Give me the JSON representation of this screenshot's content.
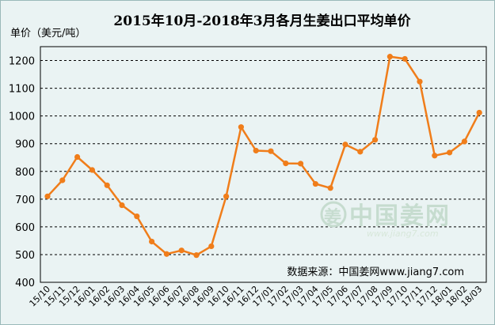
{
  "chart_data": {
    "type": "line",
    "title": "2015年10月-2018年3月各月生姜出口平均单价",
    "ylabel": "单价（美元/吨）",
    "xlabel": "",
    "ylim": [
      400,
      1250
    ],
    "yticks": [
      400,
      500,
      600,
      700,
      800,
      900,
      1000,
      1100,
      1200
    ],
    "grid": "horizontal-dashed",
    "legend": "none",
    "categories": [
      "15/10",
      "15/11",
      "15/12",
      "16/01",
      "16/02",
      "16/03",
      "16/04",
      "16/05",
      "16/06",
      "16/07",
      "16/08",
      "16/09",
      "16/10",
      "16/11",
      "16/12",
      "17/01",
      "17/02",
      "17/03",
      "17/04",
      "17/05",
      "17/06",
      "17/07",
      "17/08",
      "17/09",
      "17/10",
      "17/11",
      "17/12",
      "18/01",
      "18/02",
      "18/03"
    ],
    "series": [
      {
        "color": "#f07d1a",
        "values": [
          710,
          768,
          852,
          805,
          750,
          678,
          638,
          547,
          502,
          515,
          498,
          530,
          710,
          960,
          875,
          873,
          829,
          828,
          755,
          740,
          897,
          871,
          914,
          1214,
          1206,
          1124,
          857,
          868,
          908,
          1012
        ]
      }
    ]
  },
  "source_text": "数据来源：中国姜网www.jiang7.com",
  "watermark": {
    "text_cn": "中国姜网",
    "text_en": "www.jiang7.com",
    "logo_text": "姜",
    "color": "#c6dccf"
  }
}
